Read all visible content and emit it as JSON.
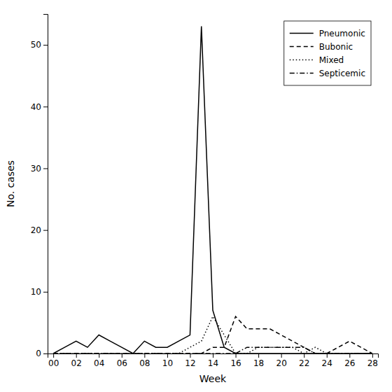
{
  "chart_data": {
    "type": "line",
    "xlabel": "Week",
    "ylabel": "No. cases",
    "x": [
      0,
      1,
      2,
      3,
      4,
      5,
      6,
      7,
      8,
      9,
      10,
      11,
      12,
      13,
      14,
      15,
      16,
      17,
      18,
      19,
      20,
      21,
      22,
      23,
      24,
      25,
      26,
      27,
      28
    ],
    "series": [
      {
        "name": "Pneumonic",
        "color": "#000000",
        "line_style": "solid",
        "values": [
          0,
          1,
          2,
          1,
          3,
          2,
          1,
          0,
          2,
          1,
          1,
          2,
          3,
          53,
          7,
          1,
          0,
          0,
          0,
          0,
          0,
          0,
          0,
          0,
          0,
          0,
          0,
          0,
          0
        ]
      },
      {
        "name": "Bubonic",
        "color": "#000000",
        "line_style": "dashed",
        "values": [
          0,
          0,
          0,
          0,
          0,
          0,
          0,
          0,
          0,
          0,
          0,
          0,
          0,
          0,
          1,
          1,
          6,
          4,
          4,
          4,
          3,
          2,
          1,
          0,
          0,
          1,
          2,
          1,
          0
        ]
      },
      {
        "name": "Mixed",
        "color": "#000000",
        "line_style": "dotted",
        "values": [
          0,
          0,
          0,
          0,
          0,
          0,
          0,
          0,
          0,
          0,
          0,
          0,
          1,
          2,
          6,
          3,
          0,
          0,
          1,
          1,
          1,
          1,
          0,
          1,
          0,
          0,
          0,
          0,
          0
        ]
      },
      {
        "name": "Septicemic",
        "color": "#000000",
        "line_style": "dashdot",
        "values": [
          0,
          0,
          0,
          0,
          0,
          0,
          0,
          0,
          0,
          0,
          0,
          0,
          0,
          0,
          0,
          0,
          0,
          1,
          1,
          1,
          1,
          1,
          1,
          0,
          0,
          0,
          0,
          0,
          0
        ]
      }
    ],
    "xlim": [
      -0.5,
      28.5
    ],
    "ylim": [
      0,
      55
    ],
    "xticks": [
      {
        "value": 0,
        "label": "00"
      },
      {
        "value": 2,
        "label": "02"
      },
      {
        "value": 4,
        "label": "04"
      },
      {
        "value": 6,
        "label": "06"
      },
      {
        "value": 8,
        "label": "08"
      },
      10,
      12,
      14,
      16,
      18,
      20,
      22,
      24,
      26,
      28
    ],
    "yticks": [
      0,
      10,
      20,
      30,
      40,
      50
    ],
    "legend": "upper right",
    "grid": false
  }
}
